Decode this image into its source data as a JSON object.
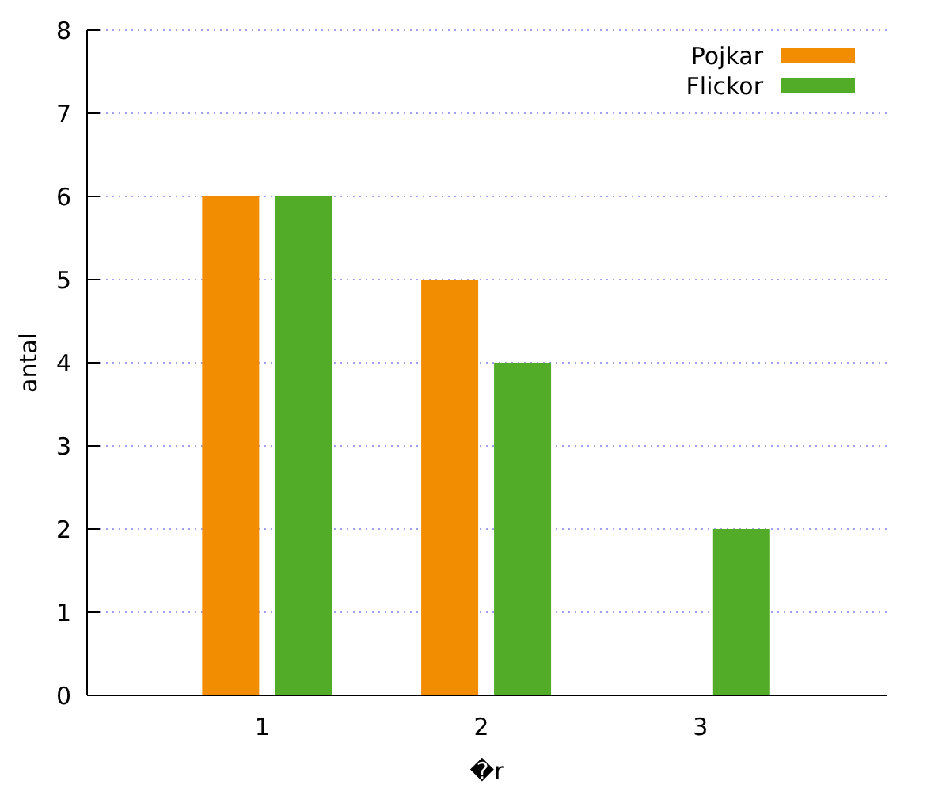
{
  "chart_data": {
    "type": "bar",
    "xlabel": "�r",
    "ylabel": "antal",
    "categories": [
      "1",
      "2",
      "3"
    ],
    "series": [
      {
        "name": "Pojkar",
        "color": "#f28c00",
        "values": [
          6,
          5,
          0
        ]
      },
      {
        "name": "Flickor",
        "color": "#52ac27",
        "values": [
          6,
          4,
          2
        ]
      }
    ],
    "ylim": [
      0,
      8
    ],
    "yticks": [
      0,
      1,
      2,
      3,
      4,
      5,
      6,
      7,
      8
    ],
    "grid": "y",
    "legend": "top right"
  }
}
